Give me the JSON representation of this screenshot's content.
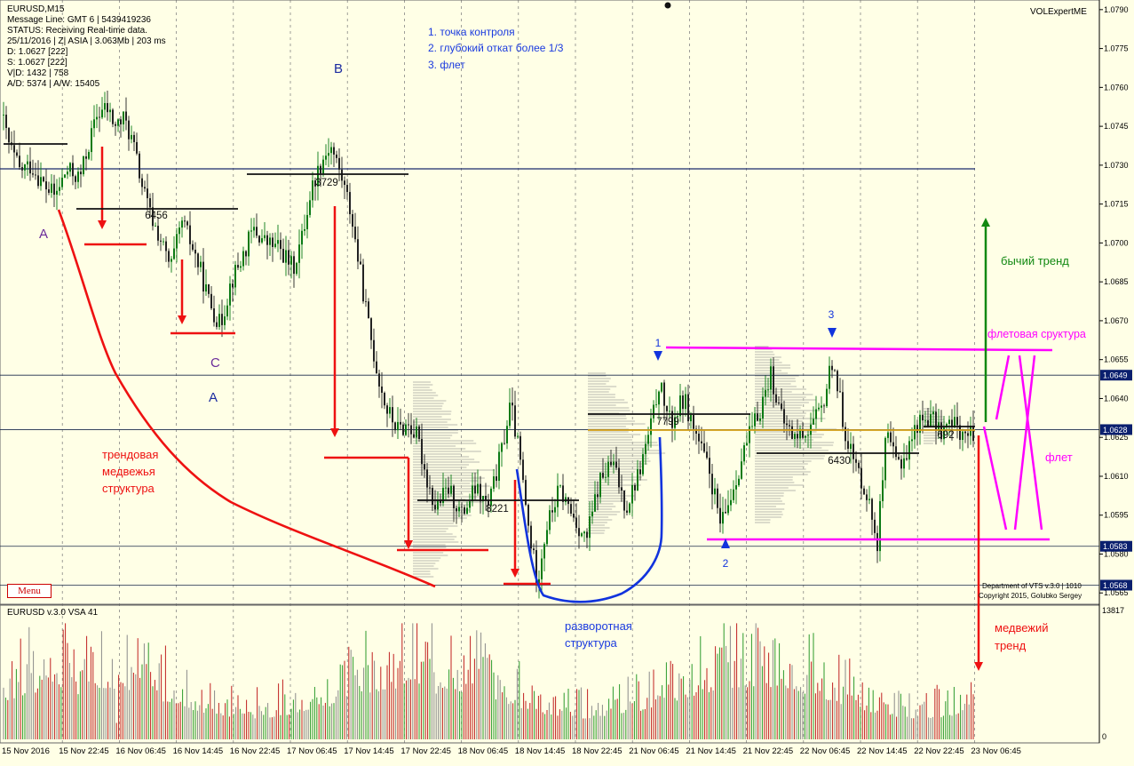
{
  "header": {
    "symbol": "EURUSD,M15",
    "indicator_name": "VOLExpertME"
  },
  "info_panel": [
    "Message Line: GMT 6 | 5439419236",
    "STATUS:  Receiving Real-time data.",
    "25/11/2016 | Z| ASIA | 3.063Mb | 203 ms",
    "D: 1.0627  [222]",
    "S: 1.0627  [222]",
    "V|D: 1432 | 758",
    "A/D: 5374 | A/W: 15405"
  ],
  "menu_label": "Menu",
  "legend": [
    "1. точка контроля",
    "2. глубокий откат более 1/3",
    "3. флет"
  ],
  "annotations": {
    "wave_A": "A",
    "wave_B": "B",
    "wave_C": "C",
    "wave_A2": "A",
    "bear_structure": [
      "трендовая",
      "медвежья",
      "структура"
    ],
    "reversal": [
      "разворотная",
      "структура"
    ],
    "bull_trend": "бычий тренд",
    "flat_structure": "флетовая сруктура",
    "flat": "флет",
    "bear_trend": [
      "медвежий",
      "тренд"
    ],
    "point_1": "1",
    "point_2": "2",
    "point_3": "3"
  },
  "volume_profile_labels": [
    "6456",
    "3729",
    "8221",
    "7799",
    "6430",
    "692"
  ],
  "level_labels": [
    "1.0649",
    "1.0628",
    "1.0583",
    "1.0568"
  ],
  "footer": [
    "Department of VTS  v.3.0 | 1010",
    "Copyright 2015, Golubko Sergey"
  ],
  "sub_window_title": "EURUSD v.3.0 VSA 41",
  "colors": {
    "background": "#ffffe6",
    "bear_line": "#ee1111",
    "reversal": "#1133dd",
    "flat": "#ff00ff",
    "bull": "#118811",
    "poc": "#000000"
  },
  "chart_data": [
    {
      "type": "candlestick",
      "title": "EURUSD,M15",
      "y_ticks": [
        "1.0790",
        "1.0775",
        "1.0760",
        "1.0745",
        "1.0730",
        "1.0715",
        "1.0700",
        "1.0685",
        "1.0670",
        "1.0655",
        "1.0640",
        "1.0625",
        "1.0610",
        "1.0595",
        "1.0580",
        "1.0565"
      ],
      "x_ticks": [
        "15 Nov 2016",
        "15 Nov 22:45",
        "16 Nov 06:45",
        "16 Nov 14:45",
        "16 Nov 22:45",
        "17 Nov 06:45",
        "17 Nov 14:45",
        "17 Nov 22:45",
        "18 Nov 06:45",
        "18 Nov 14:45",
        "18 Nov 22:45",
        "21 Nov 06:45",
        "21 Nov 14:45",
        "21 Nov 22:45",
        "22 Nov 06:45",
        "22 Nov 14:45",
        "22 Nov 22:45",
        "23 Nov 06:45"
      ],
      "ylim": [
        1.0562,
        1.0792
      ],
      "close_path": [
        [
          0,
          1.0752
        ],
        [
          10,
          1.0738
        ],
        [
          22,
          1.0728
        ],
        [
          35,
          1.073
        ],
        [
          50,
          1.0722
        ],
        [
          62,
          1.0718
        ],
        [
          75,
          1.0728
        ],
        [
          90,
          1.0725
        ],
        [
          100,
          1.0738
        ],
        [
          110,
          1.075
        ],
        [
          120,
          1.0752
        ],
        [
          130,
          1.0745
        ],
        [
          140,
          1.0748
        ],
        [
          150,
          1.0738
        ],
        [
          160,
          1.0722
        ],
        [
          170,
          1.071
        ],
        [
          180,
          1.0702
        ],
        [
          192,
          1.069
        ],
        [
          205,
          1.0708
        ],
        [
          215,
          1.07
        ],
        [
          225,
          1.069
        ],
        [
          235,
          1.0678
        ],
        [
          248,
          1.0668
        ],
        [
          260,
          1.0685
        ],
        [
          270,
          1.0692
        ],
        [
          285,
          1.0705
        ],
        [
          300,
          1.07
        ],
        [
          315,
          1.0698
        ],
        [
          330,
          1.069
        ],
        [
          340,
          1.0702
        ],
        [
          350,
          1.072
        ],
        [
          360,
          1.073
        ],
        [
          372,
          1.0738
        ],
        [
          385,
          1.0725
        ],
        [
          395,
          1.0712
        ],
        [
          405,
          1.069
        ],
        [
          415,
          1.0668
        ],
        [
          425,
          1.065
        ],
        [
          435,
          1.0636
        ],
        [
          448,
          1.0628
        ],
        [
          460,
          1.063
        ],
        [
          470,
          1.0625
        ],
        [
          480,
          1.061
        ],
        [
          490,
          1.0598
        ],
        [
          505,
          1.0605
        ],
        [
          520,
          1.0595
        ],
        [
          535,
          1.0605
        ],
        [
          550,
          1.0598
        ],
        [
          565,
          1.062
        ],
        [
          575,
          1.0638
        ],
        [
          585,
          1.0618
        ],
        [
          595,
          1.059
        ],
        [
          605,
          1.057
        ],
        [
          615,
          1.059
        ],
        [
          630,
          1.0605
        ],
        [
          645,
          1.0595
        ],
        [
          660,
          1.0585
        ],
        [
          675,
          1.0608
        ],
        [
          690,
          1.0615
        ],
        [
          705,
          1.0598
        ],
        [
          720,
          1.0612
        ],
        [
          735,
          1.0632
        ],
        [
          742,
          1.0646
        ],
        [
          755,
          1.063
        ],
        [
          770,
          1.064
        ],
        [
          785,
          1.0625
        ],
        [
          800,
          1.061
        ],
        [
          812,
          1.059
        ],
        [
          825,
          1.0605
        ],
        [
          840,
          1.0622
        ],
        [
          855,
          1.0635
        ],
        [
          868,
          1.065
        ],
        [
          880,
          1.0632
        ],
        [
          895,
          1.0625
        ],
        [
          910,
          1.0628
        ],
        [
          925,
          1.0635
        ],
        [
          938,
          1.0656
        ],
        [
          950,
          1.063
        ],
        [
          962,
          1.0615
        ],
        [
          975,
          1.0605
        ],
        [
          988,
          1.0585
        ],
        [
          998,
          1.0625
        ],
        [
          1010,
          1.0615
        ],
        [
          1020,
          1.0618
        ],
        [
          1032,
          1.063
        ],
        [
          1045,
          1.0633
        ],
        [
          1060,
          1.0628
        ],
        [
          1075,
          1.063
        ],
        [
          1090,
          1.0625
        ],
        [
          1098,
          1.0628
        ]
      ]
    },
    {
      "type": "bar",
      "title": "EURUSD v.3.0 VSA 41",
      "y_ticks": [
        "13817",
        "0"
      ],
      "ylim": [
        0,
        13817
      ],
      "note": "volume histogram per M15 bar"
    }
  ]
}
